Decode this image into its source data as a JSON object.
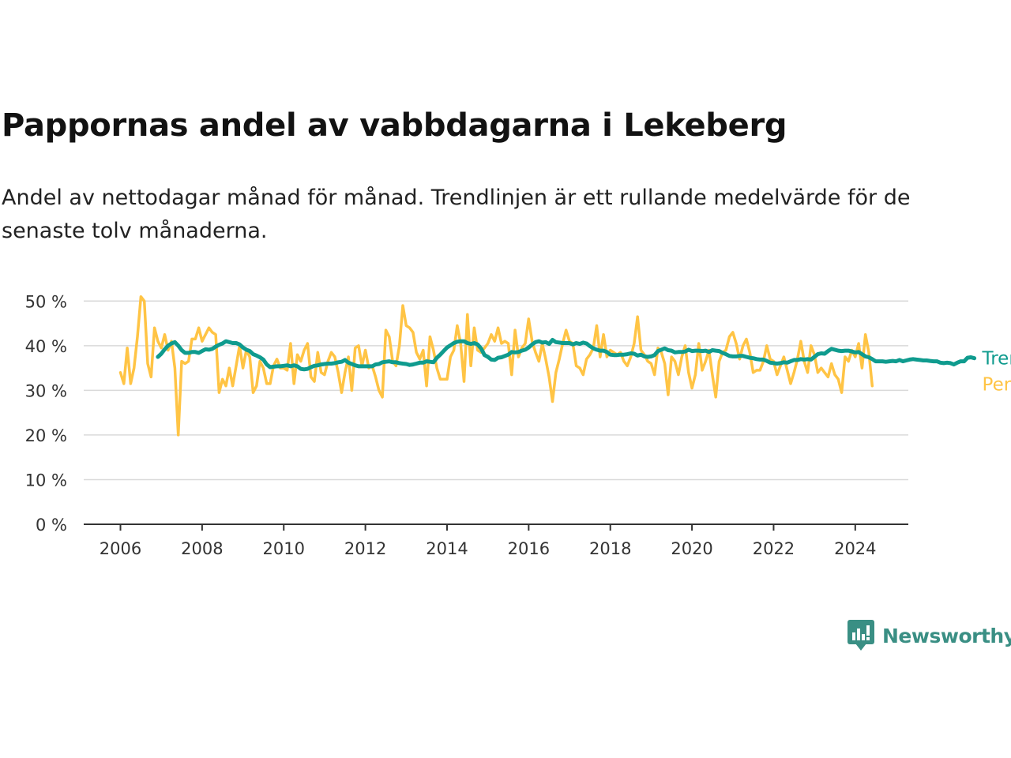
{
  "title": "Pappornas andel av vabbdagarna i Lekeberg",
  "subtitle": "Andel av nettodagar månad för månad. Trendlinjen är ett rullande medelvärde för de senaste tolv månaderna.",
  "brand": {
    "name": "Newsworthy",
    "icon": "newsworthy-logo-icon",
    "color": "#3a8f84"
  },
  "chart_data": {
    "type": "line",
    "title": "Pappornas andel av vabbdagarna i Lekeberg",
    "xlabel": "",
    "ylabel": "",
    "x_ticks": [
      2006,
      2008,
      2010,
      2012,
      2014,
      2016,
      2018,
      2020,
      2022,
      2024
    ],
    "x_tick_labels": [
      "2006",
      "2008",
      "2010",
      "2012",
      "2014",
      "2016",
      "2018",
      "2020",
      "2022",
      "2024"
    ],
    "y_ticks": [
      0,
      10,
      20,
      30,
      40,
      50
    ],
    "y_tick_labels": [
      "0 %",
      "10 %",
      "20 %",
      "30 %",
      "40 %",
      "50 %"
    ],
    "xlim": [
      2005.1,
      2025.3
    ],
    "ylim": [
      0,
      52
    ],
    "grid": "horizontal",
    "legend": "right end of lines",
    "series": [
      {
        "name": "Per månad",
        "color": "#ffc445",
        "start": "2006-01",
        "values": [
          34,
          31.5,
          39.5,
          31.5,
          35,
          42,
          51,
          50,
          36,
          33,
          44,
          41,
          39.5,
          42.5,
          39,
          41,
          35,
          20,
          36.5,
          36,
          36.5,
          41.5,
          41.5,
          44,
          41,
          42.5,
          44,
          43,
          42.5,
          29.5,
          32.5,
          31,
          35,
          31,
          35.5,
          40,
          35,
          39,
          37.5,
          29.5,
          31,
          36.5,
          35,
          31.5,
          31.5,
          35.5,
          37,
          35,
          35,
          34.5,
          40.5,
          31.5,
          38,
          36.5,
          39,
          40.5,
          33,
          32,
          38.5,
          34,
          33.5,
          36.5,
          38.5,
          37.5,
          34,
          29.5,
          34,
          37.5,
          30,
          39.5,
          40,
          35.5,
          39,
          35,
          35.5,
          33,
          30,
          28.5,
          43.5,
          42,
          36.5,
          35.5,
          40,
          49,
          44.5,
          44,
          43,
          38.5,
          37,
          39,
          31,
          42,
          39,
          35,
          32.5,
          32.5,
          32.5,
          37.5,
          39,
          44.5,
          40.5,
          32,
          47,
          35.5,
          44,
          39,
          38.5,
          39.5,
          40.5,
          42.5,
          41,
          44,
          40.5,
          41,
          40.5,
          33.5,
          43.5,
          37.5,
          39.5,
          40.5,
          46,
          41,
          38.5,
          36.5,
          40.5,
          37,
          33,
          27.5,
          34,
          37,
          40.5,
          43.5,
          41,
          40.5,
          35.5,
          35,
          33.5,
          37,
          38,
          39.5,
          44.5,
          37.5,
          42.5,
          37.5,
          39,
          38.5,
          38,
          38.5,
          36.5,
          35.5,
          37.5,
          40.5,
          46.5,
          39,
          38,
          36.5,
          36,
          33.5,
          39.5,
          38.5,
          36,
          29,
          37.5,
          36.5,
          33.5,
          37.5,
          40,
          34,
          30.5,
          33.5,
          40.5,
          34.5,
          36.5,
          39,
          33.5,
          28.5,
          36.5,
          38.5,
          39,
          42,
          43,
          40.5,
          37,
          40,
          41.5,
          38.5,
          34,
          34.5,
          34.5,
          36.5,
          40,
          37,
          36.5,
          33.5,
          35.5,
          37.5,
          34.5,
          31.5,
          34,
          37,
          41,
          36.5,
          34,
          40,
          38,
          34,
          35,
          34,
          33,
          36,
          33.5,
          32.5,
          29.5,
          37.5,
          36.5,
          39,
          37.5,
          40.5,
          35,
          42.5,
          38.5,
          31
        ]
      },
      {
        "name": "Trend",
        "color": "#0f9b8e",
        "start": "2006-12",
        "values": [
          37.5,
          38.2,
          39.2,
          40,
          40.5,
          40.8,
          40,
          39,
          38.4,
          38.4,
          38.6,
          38.6,
          38.4,
          38.8,
          39.2,
          39.1,
          39.3,
          39.8,
          40.2,
          40.5,
          41,
          40.8,
          40.6,
          40.6,
          40.3,
          39.6,
          39.1,
          38.8,
          38.1,
          37.8,
          37.4,
          36.9,
          35.8,
          35.2,
          35.3,
          35.4,
          35.4,
          35.5,
          35.6,
          35.4,
          35.6,
          35.4,
          34.8,
          34.7,
          34.8,
          35.2,
          35.5,
          35.6,
          35.8,
          35.9,
          36,
          36,
          36.1,
          36.3,
          36.4,
          36.8,
          36.2,
          35.9,
          35.6,
          35.4,
          35.4,
          35.4,
          35.4,
          35.4,
          35.8,
          35.9,
          36.3,
          36.4,
          36.5,
          36.3,
          36.3,
          36.1,
          36,
          35.9,
          35.7,
          35.8,
          36,
          36.2,
          36.2,
          36.5,
          36.4,
          36.3,
          37.3,
          38,
          38.8,
          39.6,
          40.1,
          40.6,
          40.9,
          41,
          41,
          40.6,
          40.4,
          40.6,
          40.3,
          39.4,
          37.9,
          37.5,
          36.9,
          36.8,
          37.3,
          37.4,
          37.7,
          38,
          38.6,
          38.5,
          38.6,
          38.9,
          39.1,
          39.6,
          40.3,
          40.8,
          41,
          40.7,
          40.8,
          40.4,
          41.3,
          40.8,
          40.7,
          40.6,
          40.6,
          40.6,
          40.3,
          40.6,
          40.4,
          40.7,
          40.5,
          39.9,
          39.4,
          39.1,
          38.9,
          38.9,
          38.6,
          38,
          37.9,
          37.9,
          38,
          38,
          38.1,
          38.3,
          38.2,
          37.8,
          38,
          37.6,
          37.5,
          37.6,
          37.9,
          38.8,
          39.1,
          39.4,
          39,
          38.9,
          38.5,
          38.6,
          38.6,
          38.7,
          39.1,
          38.8,
          38.9,
          38.9,
          38.8,
          38.9,
          38.6,
          39,
          38.9,
          38.8,
          38.4,
          38.1,
          37.7,
          37.6,
          37.6,
          37.7,
          37.7,
          37.5,
          37.3,
          37.2,
          37,
          36.9,
          36.9,
          36.6,
          36.2,
          36.1,
          36,
          36.1,
          36.3,
          36.2,
          36.5,
          36.8,
          36.8,
          37,
          36.9,
          37,
          36.9,
          37.5,
          38.1,
          38.3,
          38.2,
          38.8,
          39.3,
          39.1,
          38.9,
          38.8,
          38.9,
          38.9,
          38.7,
          38.5,
          38.6,
          38.1,
          37.6,
          37.4,
          37,
          36.5,
          36.5,
          36.5,
          36.4,
          36.5,
          36.6,
          36.5,
          36.8,
          36.5,
          36.7,
          36.9,
          37,
          36.9,
          36.8,
          36.7,
          36.7,
          36.6,
          36.5,
          36.5,
          36.2,
          36.1,
          36.2,
          36.1,
          35.8,
          36.2,
          36.5,
          36.5,
          37.3,
          37.4,
          37.2
        ]
      }
    ]
  }
}
